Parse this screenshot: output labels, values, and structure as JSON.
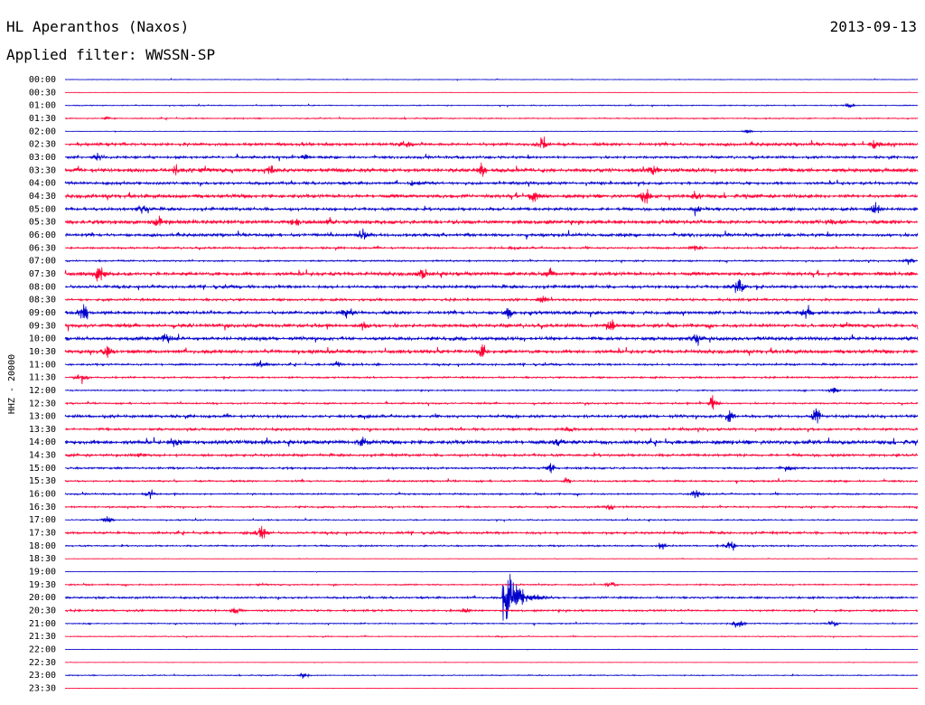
{
  "header": {
    "station": "HL Aperanthos (Naxos)",
    "date": "2013-09-13",
    "filter": "Applied filter: WWSSN-SP"
  },
  "chart_data": {
    "type": "line",
    "title": "HL Aperanthos (Naxos)",
    "ylabel": "HHZ - 20000",
    "xlabel": "",
    "colors": [
      "#0000cc",
      "#ff0033"
    ],
    "grid": false,
    "rows": [
      {
        "label": "00:00",
        "amp": 0.3,
        "events": []
      },
      {
        "label": "00:30",
        "amp": 0.2,
        "events": []
      },
      {
        "label": "01:00",
        "amp": 0.5,
        "events": [
          {
            "t": 0.92,
            "a": 2
          }
        ]
      },
      {
        "label": "01:30",
        "amp": 0.6,
        "events": [
          {
            "t": 0.05,
            "a": 1.5
          }
        ]
      },
      {
        "label": "02:00",
        "amp": 0.3,
        "events": [
          {
            "t": 0.8,
            "a": 2
          }
        ]
      },
      {
        "label": "02:30",
        "amp": 1.5,
        "events": [
          {
            "t": 0.4,
            "a": 4
          },
          {
            "t": 0.56,
            "a": 7
          },
          {
            "t": 0.95,
            "a": 5
          }
        ]
      },
      {
        "label": "03:00",
        "amp": 1.2,
        "events": [
          {
            "t": 0.04,
            "a": 4
          },
          {
            "t": 0.28,
            "a": 3
          }
        ]
      },
      {
        "label": "03:30",
        "amp": 2.0,
        "events": [
          {
            "t": 0.13,
            "a": 5
          },
          {
            "t": 0.24,
            "a": 4
          },
          {
            "t": 0.49,
            "a": 6
          },
          {
            "t": 0.69,
            "a": 4
          }
        ]
      },
      {
        "label": "04:00",
        "amp": 1.4,
        "events": [
          {
            "t": 0.41,
            "a": 3
          }
        ]
      },
      {
        "label": "04:30",
        "amp": 1.8,
        "events": [
          {
            "t": 0.55,
            "a": 6
          },
          {
            "t": 0.68,
            "a": 9
          },
          {
            "t": 0.74,
            "a": 5
          }
        ]
      },
      {
        "label": "05:00",
        "amp": 1.5,
        "events": [
          {
            "t": 0.09,
            "a": 4
          },
          {
            "t": 0.74,
            "a": 3
          },
          {
            "t": 0.95,
            "a": 5
          }
        ]
      },
      {
        "label": "05:30",
        "amp": 2.0,
        "events": [
          {
            "t": 0.11,
            "a": 5
          },
          {
            "t": 0.27,
            "a": 4
          },
          {
            "t": 0.31,
            "a": 3
          },
          {
            "t": 0.9,
            "a": 3
          }
        ]
      },
      {
        "label": "06:00",
        "amp": 1.5,
        "events": [
          {
            "t": 0.35,
            "a": 4
          }
        ]
      },
      {
        "label": "06:30",
        "amp": 1.0,
        "events": [
          {
            "t": 0.74,
            "a": 3
          }
        ]
      },
      {
        "label": "07:00",
        "amp": 0.8,
        "events": [
          {
            "t": 0.99,
            "a": 4
          }
        ]
      },
      {
        "label": "07:30",
        "amp": 1.8,
        "events": [
          {
            "t": 0.04,
            "a": 8
          },
          {
            "t": 0.42,
            "a": 5
          },
          {
            "t": 0.57,
            "a": 4
          }
        ]
      },
      {
        "label": "08:00",
        "amp": 1.5,
        "events": [
          {
            "t": 0.79,
            "a": 9
          }
        ]
      },
      {
        "label": "08:30",
        "amp": 1.2,
        "events": [
          {
            "t": 0.56,
            "a": 3
          }
        ]
      },
      {
        "label": "09:00",
        "amp": 1.6,
        "events": [
          {
            "t": 0.02,
            "a": 11
          },
          {
            "t": 0.33,
            "a": 8
          },
          {
            "t": 0.52,
            "a": 5
          },
          {
            "t": 0.87,
            "a": 8
          }
        ]
      },
      {
        "label": "09:30",
        "amp": 1.7,
        "events": [
          {
            "t": 0.35,
            "a": 4
          },
          {
            "t": 0.64,
            "a": 6
          }
        ]
      },
      {
        "label": "10:00",
        "amp": 1.8,
        "events": [
          {
            "t": 0.12,
            "a": 7
          },
          {
            "t": 0.74,
            "a": 4
          }
        ]
      },
      {
        "label": "10:30",
        "amp": 1.8,
        "events": [
          {
            "t": 0.05,
            "a": 6
          },
          {
            "t": 0.49,
            "a": 7
          }
        ]
      },
      {
        "label": "11:00",
        "amp": 1.0,
        "events": [
          {
            "t": 0.23,
            "a": 5
          },
          {
            "t": 0.32,
            "a": 3
          }
        ]
      },
      {
        "label": "11:30",
        "amp": 0.9,
        "events": [
          {
            "t": 0.02,
            "a": 8
          }
        ]
      },
      {
        "label": "12:00",
        "amp": 0.7,
        "events": [
          {
            "t": 0.9,
            "a": 4
          }
        ]
      },
      {
        "label": "12:30",
        "amp": 0.8,
        "events": [
          {
            "t": 0.76,
            "a": 8
          }
        ]
      },
      {
        "label": "13:00",
        "amp": 1.4,
        "events": [
          {
            "t": 0.78,
            "a": 7
          },
          {
            "t": 0.88,
            "a": 9
          }
        ]
      },
      {
        "label": "13:30",
        "amp": 1.2,
        "events": [
          {
            "t": 0.59,
            "a": 3
          }
        ]
      },
      {
        "label": "14:00",
        "amp": 2.0,
        "events": [
          {
            "t": 0.13,
            "a": 4
          },
          {
            "t": 0.35,
            "a": 4
          },
          {
            "t": 0.58,
            "a": 4
          }
        ]
      },
      {
        "label": "14:30",
        "amp": 1.3,
        "events": [
          {
            "t": 0.09,
            "a": 3
          }
        ]
      },
      {
        "label": "15:00",
        "amp": 1.0,
        "events": [
          {
            "t": 0.57,
            "a": 4
          },
          {
            "t": 0.85,
            "a": 3
          }
        ]
      },
      {
        "label": "15:30",
        "amp": 0.9,
        "events": [
          {
            "t": 0.59,
            "a": 3
          }
        ]
      },
      {
        "label": "16:00",
        "amp": 0.8,
        "events": [
          {
            "t": 0.1,
            "a": 4
          },
          {
            "t": 0.74,
            "a": 4
          }
        ]
      },
      {
        "label": "16:30",
        "amp": 0.9,
        "events": [
          {
            "t": 0.64,
            "a": 3
          }
        ]
      },
      {
        "label": "17:00",
        "amp": 0.6,
        "events": [
          {
            "t": 0.05,
            "a": 4
          }
        ]
      },
      {
        "label": "17:30",
        "amp": 1.2,
        "events": [
          {
            "t": 0.23,
            "a": 8
          }
        ]
      },
      {
        "label": "18:00",
        "amp": 0.8,
        "events": [
          {
            "t": 0.7,
            "a": 3
          },
          {
            "t": 0.78,
            "a": 6
          }
        ]
      },
      {
        "label": "18:30",
        "amp": 0.3,
        "events": []
      },
      {
        "label": "19:00",
        "amp": 0.2,
        "events": []
      },
      {
        "label": "19:30",
        "amp": 0.7,
        "events": [
          {
            "t": 0.64,
            "a": 3
          }
        ]
      },
      {
        "label": "20:00",
        "amp": 1.0,
        "events": [
          {
            "t": 0.515,
            "a": 24,
            "big": true
          }
        ]
      },
      {
        "label": "20:30",
        "amp": 1.0,
        "events": [
          {
            "t": 0.2,
            "a": 4
          },
          {
            "t": 0.47,
            "a": 3
          }
        ]
      },
      {
        "label": "21:00",
        "amp": 0.6,
        "events": [
          {
            "t": 0.79,
            "a": 6
          },
          {
            "t": 0.9,
            "a": 3
          }
        ]
      },
      {
        "label": "21:30",
        "amp": 0.5,
        "events": []
      },
      {
        "label": "22:00",
        "amp": 0.2,
        "events": []
      },
      {
        "label": "22:30",
        "amp": 0.2,
        "events": []
      },
      {
        "label": "23:00",
        "amp": 0.5,
        "events": [
          {
            "t": 0.28,
            "a": 3
          }
        ]
      },
      {
        "label": "23:30",
        "amp": 0.2,
        "events": []
      }
    ]
  }
}
